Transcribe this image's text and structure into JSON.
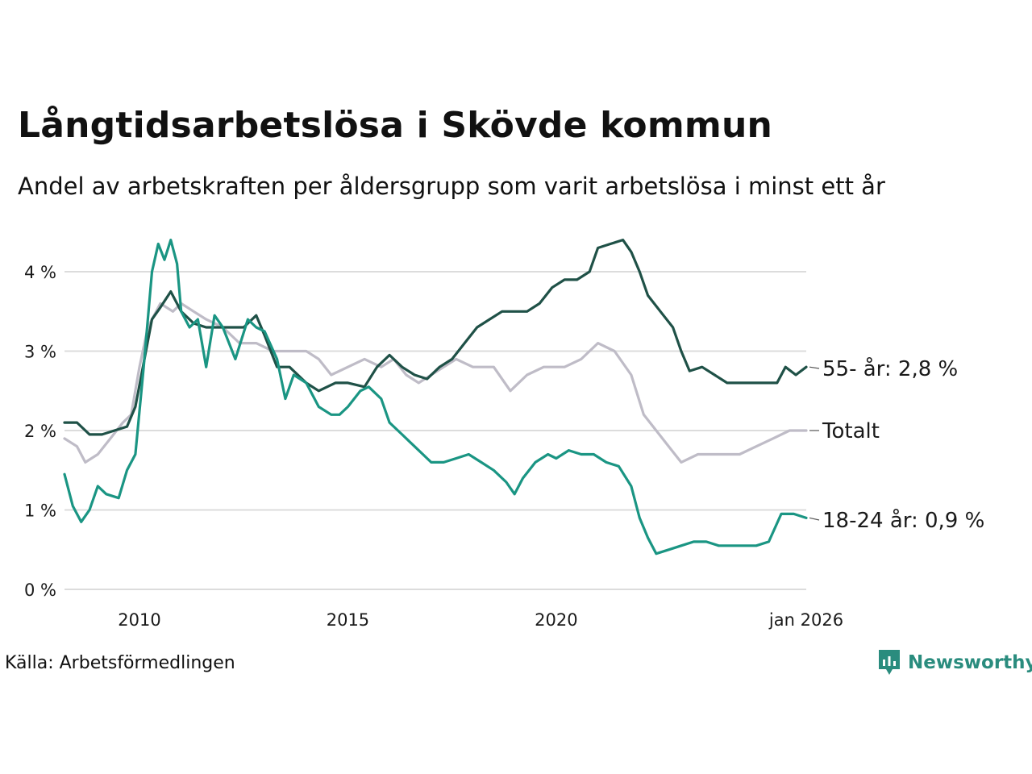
{
  "title": "Långtidsarbetslösa i Skövde kommun",
  "subtitle": "Andel av arbetskraften per åldersgrupp som varit arbetslösa i minst ett år",
  "source": "Källa: Arbetsförmedlingen",
  "brand": "Newsworthy",
  "colors": {
    "age55": "#1f5147",
    "age18_24": "#1a9583",
    "total": "#bfbcc7",
    "grid": "#dcdcdc",
    "brand": "#2a8c7e"
  },
  "chart_data": {
    "type": "line",
    "title": "Långtidsarbetslösa i Skövde kommun",
    "xlabel": "",
    "ylabel": "",
    "xlim": [
      2008.2,
      2026.0
    ],
    "ylim": [
      0,
      4.5
    ],
    "grid": true,
    "y_ticks": [
      {
        "value": 0,
        "label": "0 %"
      },
      {
        "value": 1,
        "label": "1 %"
      },
      {
        "value": 2,
        "label": "2 %"
      },
      {
        "value": 3,
        "label": "3 %"
      },
      {
        "value": 4,
        "label": "4 %"
      }
    ],
    "x_ticks": [
      {
        "value": 2010,
        "label": "2010"
      },
      {
        "value": 2015,
        "label": "2015"
      },
      {
        "value": 2020,
        "label": "2020"
      },
      {
        "value": 2026,
        "label": "jan 2026"
      }
    ],
    "series": [
      {
        "name": "Totalt",
        "label": "Totalt",
        "color_key": "total",
        "points": [
          [
            2008.2,
            1.9
          ],
          [
            2008.5,
            1.8
          ],
          [
            2008.7,
            1.6
          ],
          [
            2009.0,
            1.7
          ],
          [
            2009.3,
            1.9
          ],
          [
            2009.6,
            2.1
          ],
          [
            2009.8,
            2.2
          ],
          [
            2010.0,
            2.8
          ],
          [
            2010.2,
            3.3
          ],
          [
            2010.5,
            3.6
          ],
          [
            2010.8,
            3.5
          ],
          [
            2011.0,
            3.6
          ],
          [
            2011.3,
            3.5
          ],
          [
            2011.6,
            3.4
          ],
          [
            2012.0,
            3.3
          ],
          [
            2012.4,
            3.1
          ],
          [
            2012.8,
            3.1
          ],
          [
            2013.2,
            3.0
          ],
          [
            2013.6,
            3.0
          ],
          [
            2014.0,
            3.0
          ],
          [
            2014.3,
            2.9
          ],
          [
            2014.6,
            2.7
          ],
          [
            2015.0,
            2.8
          ],
          [
            2015.4,
            2.9
          ],
          [
            2015.8,
            2.8
          ],
          [
            2016.1,
            2.9
          ],
          [
            2016.4,
            2.7
          ],
          [
            2016.7,
            2.6
          ],
          [
            2017.0,
            2.7
          ],
          [
            2017.3,
            2.8
          ],
          [
            2017.6,
            2.9
          ],
          [
            2018.0,
            2.8
          ],
          [
            2018.5,
            2.8
          ],
          [
            2018.9,
            2.5
          ],
          [
            2019.3,
            2.7
          ],
          [
            2019.7,
            2.8
          ],
          [
            2020.2,
            2.8
          ],
          [
            2020.6,
            2.9
          ],
          [
            2021.0,
            3.1
          ],
          [
            2021.4,
            3.0
          ],
          [
            2021.8,
            2.7
          ],
          [
            2022.1,
            2.2
          ],
          [
            2022.4,
            2.0
          ],
          [
            2022.7,
            1.8
          ],
          [
            2023.0,
            1.6
          ],
          [
            2023.4,
            1.7
          ],
          [
            2023.8,
            1.7
          ],
          [
            2024.4,
            1.7
          ],
          [
            2024.8,
            1.8
          ],
          [
            2025.2,
            1.9
          ],
          [
            2025.6,
            2.0
          ],
          [
            2026.0,
            2.0
          ]
        ]
      },
      {
        "name": "55- år",
        "label": "55- år: 2,8 %",
        "color_key": "age55",
        "points": [
          [
            2008.2,
            2.1
          ],
          [
            2008.5,
            2.1
          ],
          [
            2008.8,
            1.95
          ],
          [
            2009.1,
            1.95
          ],
          [
            2009.4,
            2.0
          ],
          [
            2009.7,
            2.05
          ],
          [
            2009.9,
            2.3
          ],
          [
            2010.1,
            2.85
          ],
          [
            2010.3,
            3.4
          ],
          [
            2010.5,
            3.55
          ],
          [
            2010.75,
            3.75
          ],
          [
            2011.0,
            3.5
          ],
          [
            2011.3,
            3.35
          ],
          [
            2011.6,
            3.3
          ],
          [
            2012.0,
            3.3
          ],
          [
            2012.5,
            3.3
          ],
          [
            2012.8,
            3.45
          ],
          [
            2013.0,
            3.2
          ],
          [
            2013.3,
            2.8
          ],
          [
            2013.6,
            2.8
          ],
          [
            2014.0,
            2.6
          ],
          [
            2014.3,
            2.5
          ],
          [
            2014.7,
            2.6
          ],
          [
            2015.0,
            2.6
          ],
          [
            2015.4,
            2.55
          ],
          [
            2015.7,
            2.8
          ],
          [
            2016.0,
            2.95
          ],
          [
            2016.3,
            2.8
          ],
          [
            2016.6,
            2.7
          ],
          [
            2016.9,
            2.65
          ],
          [
            2017.2,
            2.8
          ],
          [
            2017.5,
            2.9
          ],
          [
            2017.8,
            3.1
          ],
          [
            2018.1,
            3.3
          ],
          [
            2018.4,
            3.4
          ],
          [
            2018.7,
            3.5
          ],
          [
            2019.0,
            3.5
          ],
          [
            2019.3,
            3.5
          ],
          [
            2019.6,
            3.6
          ],
          [
            2019.9,
            3.8
          ],
          [
            2020.2,
            3.9
          ],
          [
            2020.5,
            3.9
          ],
          [
            2020.8,
            4.0
          ],
          [
            2021.0,
            4.3
          ],
          [
            2021.3,
            4.35
          ],
          [
            2021.6,
            4.4
          ],
          [
            2021.8,
            4.25
          ],
          [
            2022.0,
            4.0
          ],
          [
            2022.2,
            3.7
          ],
          [
            2022.5,
            3.5
          ],
          [
            2022.8,
            3.3
          ],
          [
            2023.0,
            3.0
          ],
          [
            2023.2,
            2.75
          ],
          [
            2023.5,
            2.8
          ],
          [
            2023.8,
            2.7
          ],
          [
            2024.1,
            2.6
          ],
          [
            2024.4,
            2.6
          ],
          [
            2024.7,
            2.6
          ],
          [
            2025.0,
            2.6
          ],
          [
            2025.3,
            2.6
          ],
          [
            2025.5,
            2.8
          ],
          [
            2025.75,
            2.7
          ],
          [
            2026.0,
            2.8
          ]
        ]
      },
      {
        "name": "18-24 år",
        "label": "18-24 år: 0,9 %",
        "color_key": "age18_24",
        "points": [
          [
            2008.2,
            1.45
          ],
          [
            2008.4,
            1.05
          ],
          [
            2008.6,
            0.85
          ],
          [
            2008.8,
            1.0
          ],
          [
            2009.0,
            1.3
          ],
          [
            2009.2,
            1.2
          ],
          [
            2009.5,
            1.15
          ],
          [
            2009.7,
            1.5
          ],
          [
            2009.9,
            1.7
          ],
          [
            2010.1,
            2.8
          ],
          [
            2010.3,
            4.0
          ],
          [
            2010.45,
            4.35
          ],
          [
            2010.6,
            4.15
          ],
          [
            2010.75,
            4.4
          ],
          [
            2010.9,
            4.1
          ],
          [
            2011.0,
            3.5
          ],
          [
            2011.2,
            3.3
          ],
          [
            2011.4,
            3.4
          ],
          [
            2011.6,
            2.8
          ],
          [
            2011.8,
            3.45
          ],
          [
            2012.0,
            3.3
          ],
          [
            2012.3,
            2.9
          ],
          [
            2012.6,
            3.4
          ],
          [
            2012.8,
            3.3
          ],
          [
            2013.0,
            3.25
          ],
          [
            2013.3,
            2.9
          ],
          [
            2013.5,
            2.4
          ],
          [
            2013.7,
            2.7
          ],
          [
            2014.0,
            2.6
          ],
          [
            2014.3,
            2.3
          ],
          [
            2014.6,
            2.2
          ],
          [
            2014.8,
            2.2
          ],
          [
            2015.0,
            2.3
          ],
          [
            2015.3,
            2.5
          ],
          [
            2015.5,
            2.55
          ],
          [
            2015.8,
            2.4
          ],
          [
            2016.0,
            2.1
          ],
          [
            2016.3,
            1.95
          ],
          [
            2016.6,
            1.8
          ],
          [
            2016.8,
            1.7
          ],
          [
            2017.0,
            1.6
          ],
          [
            2017.3,
            1.6
          ],
          [
            2017.6,
            1.65
          ],
          [
            2017.9,
            1.7
          ],
          [
            2018.2,
            1.6
          ],
          [
            2018.5,
            1.5
          ],
          [
            2018.8,
            1.35
          ],
          [
            2019.0,
            1.2
          ],
          [
            2019.2,
            1.4
          ],
          [
            2019.5,
            1.6
          ],
          [
            2019.8,
            1.7
          ],
          [
            2020.0,
            1.65
          ],
          [
            2020.3,
            1.75
          ],
          [
            2020.6,
            1.7
          ],
          [
            2020.9,
            1.7
          ],
          [
            2021.2,
            1.6
          ],
          [
            2021.5,
            1.55
          ],
          [
            2021.8,
            1.3
          ],
          [
            2022.0,
            0.9
          ],
          [
            2022.2,
            0.65
          ],
          [
            2022.4,
            0.45
          ],
          [
            2022.7,
            0.5
          ],
          [
            2023.0,
            0.55
          ],
          [
            2023.3,
            0.6
          ],
          [
            2023.6,
            0.6
          ],
          [
            2023.9,
            0.55
          ],
          [
            2024.2,
            0.55
          ],
          [
            2024.5,
            0.55
          ],
          [
            2024.8,
            0.55
          ],
          [
            2025.1,
            0.6
          ],
          [
            2025.4,
            0.95
          ],
          [
            2025.7,
            0.95
          ],
          [
            2026.0,
            0.9
          ]
        ]
      }
    ]
  }
}
